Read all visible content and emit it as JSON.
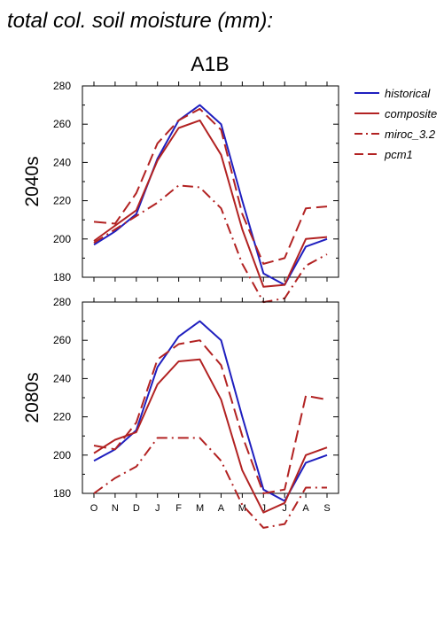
{
  "figure_title": "total col. soil moisture (mm):",
  "colors": {
    "historical": "#1f1fbf",
    "model": "#b22222"
  },
  "chart_data": [
    {
      "type": "line",
      "title": "A1B",
      "ylabel": "2040s",
      "categories": [
        "O",
        "N",
        "D",
        "J",
        "F",
        "M",
        "A",
        "M",
        "J",
        "J",
        "A",
        "S"
      ],
      "ylim": [
        180,
        280
      ],
      "yticks": [
        180,
        200,
        220,
        240,
        260,
        280
      ],
      "grid": false,
      "legend_position": "right",
      "series": [
        {
          "name": "historical",
          "style": "solid",
          "color": "#1f1fbf",
          "values": [
            197,
            204,
            213,
            242,
            262,
            270,
            260,
            220,
            182,
            176,
            196,
            200
          ]
        },
        {
          "name": "composite",
          "style": "solid",
          "color": "#b22222",
          "values": [
            199,
            207,
            215,
            241,
            258,
            262,
            244,
            205,
            175,
            176,
            200,
            201
          ]
        },
        {
          "name": "miroc_3.2",
          "style": "dashdot",
          "color": "#b22222",
          "values": [
            198,
            205,
            212,
            219,
            228,
            227,
            216,
            187,
            167,
            169,
            186,
            192
          ]
        },
        {
          "name": "pcm1",
          "style": "dashed",
          "color": "#b22222",
          "values": [
            209,
            208,
            224,
            250,
            262,
            268,
            257,
            213,
            187,
            190,
            216,
            217
          ]
        }
      ]
    },
    {
      "type": "line",
      "title": "",
      "ylabel": "2080s",
      "categories": [
        "O",
        "N",
        "D",
        "J",
        "F",
        "M",
        "A",
        "M",
        "J",
        "J",
        "A",
        "S"
      ],
      "ylim": [
        180,
        280
      ],
      "ytick_labels": [
        "180",
        "200",
        "220",
        "240",
        "260",
        "280"
      ],
      "grid": false,
      "legend_position": "none",
      "series": [
        {
          "name": "historical",
          "style": "solid",
          "color": "#1f1fbf",
          "values": [
            197,
            203,
            213,
            246,
            262,
            270,
            260,
            220,
            182,
            176,
            196,
            200
          ]
        },
        {
          "name": "composite",
          "style": "solid",
          "color": "#b22222",
          "values": [
            201,
            208,
            212,
            237,
            249,
            250,
            229,
            192,
            170,
            175,
            200,
            204
          ]
        },
        {
          "name": "miroc_3.2",
          "style": "dashdot",
          "color": "#b22222",
          "values": [
            180,
            188,
            194,
            209,
            209,
            209,
            197,
            174,
            162,
            164,
            183,
            183
          ]
        },
        {
          "name": "pcm1",
          "style": "dashed",
          "color": "#b22222",
          "values": [
            205,
            203,
            217,
            250,
            258,
            260,
            247,
            210,
            180,
            182,
            231,
            229
          ]
        }
      ]
    }
  ]
}
